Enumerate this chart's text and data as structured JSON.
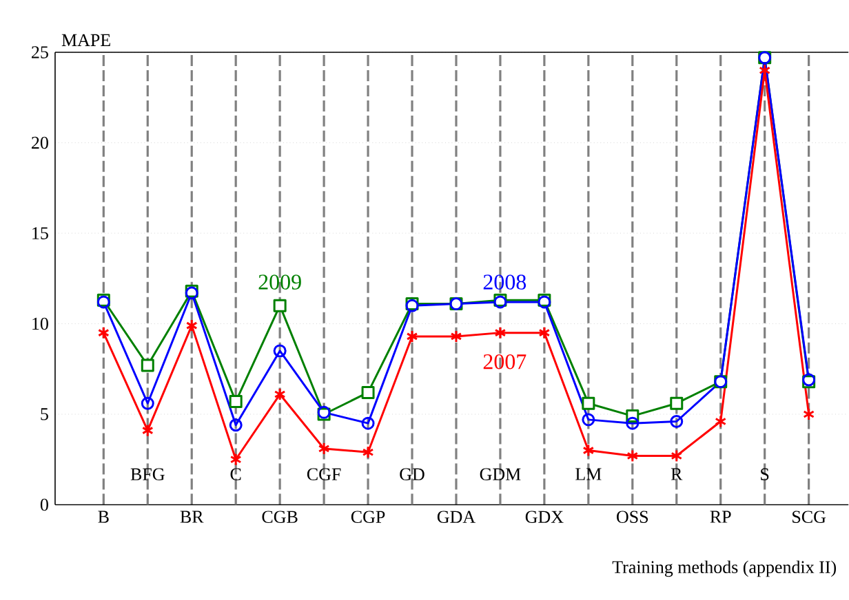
{
  "chart_data": {
    "type": "line",
    "xlabel": "Training methods (appendix II)",
    "ylabel": "MAPE",
    "categories": [
      "B",
      "BFG",
      "BR",
      "C",
      "CGB",
      "CGF",
      "CGP",
      "GD",
      "GDA",
      "GDM",
      "GDX",
      "LM",
      "OSS",
      "R",
      "RP",
      "S",
      "SCG"
    ],
    "series": [
      {
        "name": "2009",
        "color": "#008000",
        "marker": "square",
        "values": [
          11.3,
          7.7,
          11.8,
          5.7,
          11.0,
          5.0,
          6.2,
          11.1,
          11.1,
          11.3,
          11.3,
          5.6,
          4.9,
          5.6,
          6.8,
          24.7,
          6.8
        ]
      },
      {
        "name": "2008",
        "color": "#0000ff",
        "marker": "circle",
        "values": [
          11.2,
          5.6,
          11.7,
          4.4,
          8.5,
          5.1,
          4.5,
          11.0,
          11.1,
          11.2,
          11.2,
          4.7,
          4.5,
          4.6,
          6.8,
          24.7,
          6.9
        ]
      },
      {
        "name": "2007",
        "color": "#ff0000",
        "marker": "cross",
        "values": [
          9.5,
          4.1,
          9.9,
          2.5,
          6.1,
          3.1,
          2.9,
          9.3,
          9.3,
          9.5,
          9.5,
          3.0,
          2.7,
          2.7,
          4.6,
          24.0,
          5.0
        ]
      }
    ],
    "ylim": [
      0,
      25
    ],
    "yticks": [
      0,
      5,
      10,
      15,
      20,
      25
    ],
    "grid": true,
    "legend": false
  }
}
